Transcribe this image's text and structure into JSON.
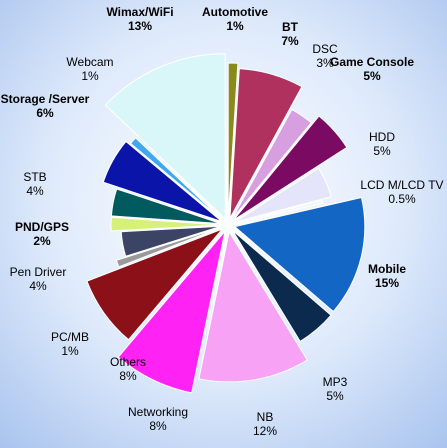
{
  "chart_data": {
    "type": "pie",
    "categories": [
      "Wimax/WiFi",
      "Automotive",
      "BT",
      "DSC",
      "Game Console",
      "HDD",
      "LCD M/LCD TV",
      "Mobile",
      "MP3",
      "NB",
      "Networking",
      "Others",
      "PC/MB",
      "Pen Driver",
      "PND/GPS",
      "STB",
      "Storage /Server",
      "Webcam"
    ],
    "values": [
      13,
      1,
      7,
      3,
      5,
      5,
      0.5,
      15,
      5,
      12,
      8,
      8,
      1,
      4,
      2,
      4,
      6,
      1
    ],
    "value_labels": [
      "13%",
      "1%",
      "7%",
      "3%",
      "5%",
      "5%",
      "0.5%",
      "15%",
      "5%",
      "12%",
      "8%",
      "8%",
      "1%",
      "4%",
      "2%",
      "4%",
      "6%",
      "1%"
    ],
    "colors": [
      "#d9f7f8",
      "#8a8a1c",
      "#b0305e",
      "#d79ee0",
      "#7a0a62",
      "#e4e4fa",
      "#f2f2f2",
      "#1466c4",
      "#0b2a4e",
      "#f7a2f4",
      "#ff22f5",
      "#8c1018",
      "#9a9a9a",
      "#3c4466",
      "#d6f07e",
      "#005a5e",
      "#0a14a8",
      "#3ea8f2"
    ]
  }
}
